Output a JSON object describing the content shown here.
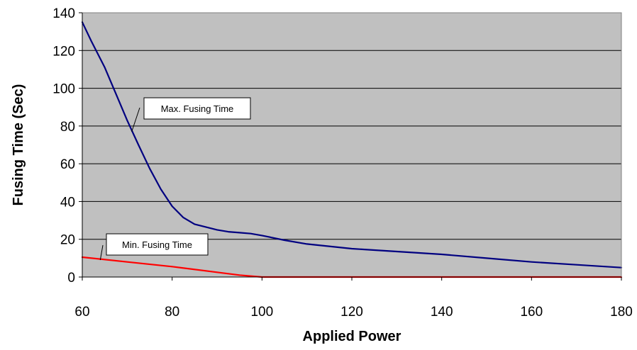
{
  "chart_data": {
    "type": "line",
    "xlabel": "Applied Power",
    "ylabel": "Fusing Time (Sec)",
    "xlim": [
      60,
      180
    ],
    "ylim": [
      0,
      140
    ],
    "x_ticks": [
      60,
      80,
      100,
      120,
      140,
      160,
      180
    ],
    "y_ticks": [
      0,
      20,
      40,
      60,
      80,
      100,
      120,
      140
    ],
    "grid": "horizontal",
    "legend": "none",
    "plot_background": "#c0c0c0",
    "series": [
      {
        "name": "Max. Fusing Time",
        "color": "#000080",
        "x": [
          60,
          62,
          65,
          67.5,
          70,
          72.5,
          75,
          77.5,
          80,
          82.5,
          85,
          87.5,
          90,
          92.5,
          95,
          97.5,
          100,
          105,
          110,
          120,
          130,
          140,
          150,
          160,
          170,
          180
        ],
        "y": [
          135,
          125,
          111,
          97,
          83,
          70,
          57.5,
          46.5,
          37.5,
          31.5,
          28,
          26.5,
          25,
          24,
          23.5,
          23,
          22,
          19.5,
          17.5,
          15,
          13.5,
          12,
          10,
          8,
          6.5,
          5
        ]
      },
      {
        "name": "Min. Fusing Time",
        "color": "#ff0000",
        "x": [
          60,
          70,
          80,
          90,
          95,
          100,
          105,
          110,
          120,
          140,
          160,
          180
        ],
        "y": [
          10.5,
          8,
          5.5,
          2.5,
          1,
          0,
          0,
          0,
          0,
          0,
          0,
          0
        ]
      }
    ],
    "annotations": [
      {
        "text": "Max. Fusing Time",
        "series": 0,
        "x": 71,
        "y": 77
      },
      {
        "text": "Min. Fusing Time",
        "series": 1,
        "x": 64,
        "y": 9
      }
    ]
  }
}
